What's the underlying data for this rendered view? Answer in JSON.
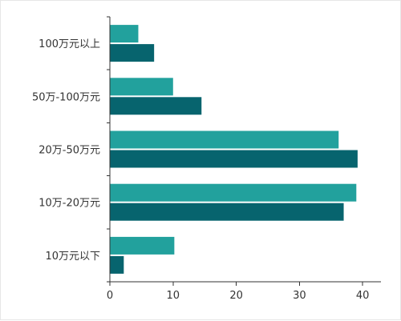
{
  "chart_data": {
    "type": "bar",
    "orientation": "horizontal",
    "categories": [
      "10万元以下",
      "10万-20万元",
      "20万-50万元",
      "50万-100万元",
      "100万元以上"
    ],
    "series": [
      {
        "values": [
          10.2,
          39.0,
          36.2,
          10.0,
          4.5
        ],
        "color": "#22a19d"
      },
      {
        "values": [
          2.2,
          37.0,
          39.2,
          14.5,
          7.0
        ],
        "color": "#07646e"
      }
    ],
    "x_ticks": [
      0,
      10,
      20,
      30,
      40
    ],
    "xlim": [
      0,
      41.5
    ],
    "title": "",
    "xlabel": "",
    "ylabel": "",
    "grid": false,
    "legend": false
  }
}
